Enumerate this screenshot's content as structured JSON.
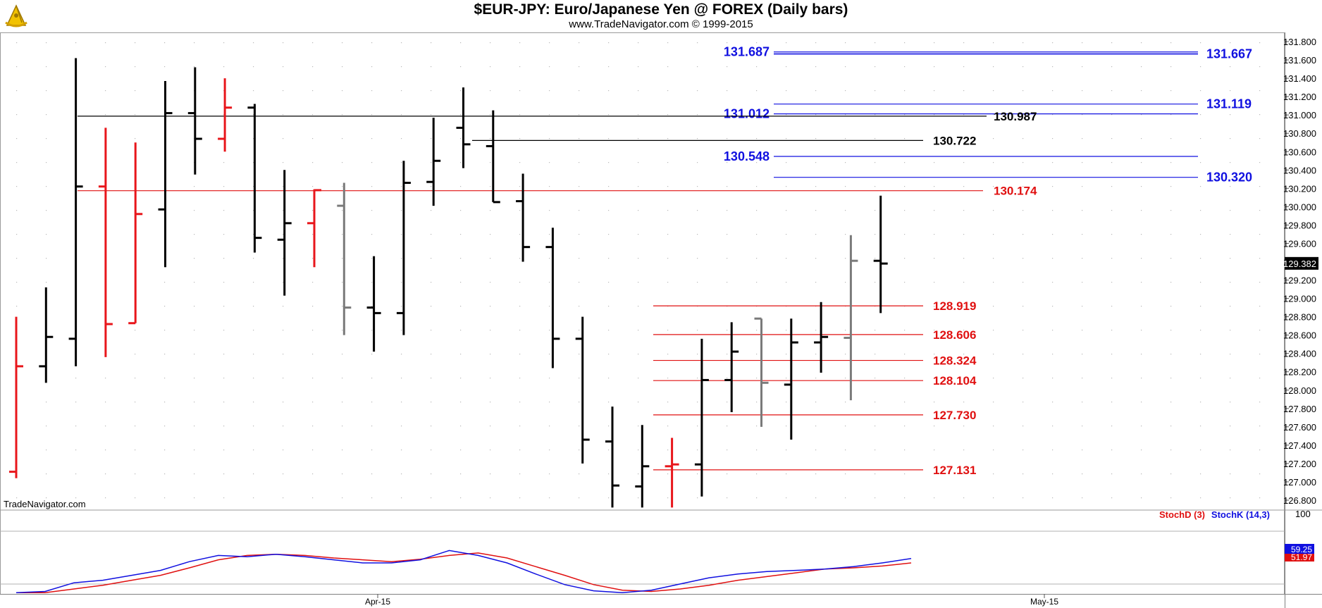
{
  "header": {
    "title": "$EUR-JPY:  Euro/Japanese Yen @ FOREX  (Daily bars)",
    "subtitle": "www.TradeNavigator.com © 1999-2015",
    "logo_icon": "sextant-icon"
  },
  "watermark": "TradeNavigator.com",
  "chart_data": [
    {
      "type": "ohlc",
      "title": "$EUR-JPY:  Euro/Japanese Yen @ FOREX  (Daily bars)",
      "ylim": [
        126.7,
        131.9
      ],
      "y_ticks": [
        "131.800",
        "131.600",
        "131.400",
        "131.200",
        "131.000",
        "130.800",
        "130.600",
        "130.400",
        "130.200",
        "130.000",
        "129.800",
        "129.600",
        "129.400",
        "129.200",
        "129.000",
        "128.800",
        "128.600",
        "128.400",
        "128.200",
        "128.000",
        "127.800",
        "127.600",
        "127.400",
        "127.200",
        "127.000",
        "126.800"
      ],
      "x_ticks": [
        "Apr-15",
        "May-15"
      ],
      "last_price": "129.382",
      "grid": "dotted",
      "bars": [
        {
          "open": 127.11,
          "high": 128.8,
          "low": 127.04,
          "close": 128.26,
          "color": "red"
        },
        {
          "open": 128.26,
          "high": 129.12,
          "low": 128.08,
          "close": 128.58,
          "color": "black"
        },
        {
          "open": 128.56,
          "high": 131.62,
          "low": 128.26,
          "close": 130.22,
          "color": "black"
        },
        {
          "open": 130.22,
          "high": 130.86,
          "low": 128.36,
          "close": 128.72,
          "color": "red"
        },
        {
          "open": 128.73,
          "high": 130.7,
          "low": 128.73,
          "close": 129.92,
          "color": "red"
        },
        {
          "open": 129.97,
          "high": 131.37,
          "low": 129.34,
          "close": 131.02,
          "color": "black"
        },
        {
          "open": 131.02,
          "high": 131.52,
          "low": 130.35,
          "close": 130.74,
          "color": "black"
        },
        {
          "open": 130.74,
          "high": 131.4,
          "low": 130.6,
          "close": 131.08,
          "color": "red"
        },
        {
          "open": 131.08,
          "high": 131.12,
          "low": 129.5,
          "close": 129.66,
          "color": "black"
        },
        {
          "open": 129.64,
          "high": 130.4,
          "low": 129.03,
          "close": 129.82,
          "color": "black"
        },
        {
          "open": 129.82,
          "high": 130.19,
          "low": 129.34,
          "close": 130.18,
          "color": "red"
        },
        {
          "open": 130.01,
          "high": 130.26,
          "low": 128.6,
          "close": 128.9,
          "color": "gray"
        },
        {
          "open": 128.9,
          "high": 129.46,
          "low": 128.42,
          "close": 128.84,
          "color": "black"
        },
        {
          "open": 128.84,
          "high": 130.5,
          "low": 128.6,
          "close": 130.26,
          "color": "black"
        },
        {
          "open": 130.27,
          "high": 130.97,
          "low": 130.01,
          "close": 130.5,
          "color": "black"
        },
        {
          "open": 130.86,
          "high": 131.3,
          "low": 130.42,
          "close": 130.68,
          "color": "black"
        },
        {
          "open": 130.66,
          "high": 131.05,
          "low": 130.05,
          "close": 130.05,
          "color": "black"
        },
        {
          "open": 130.06,
          "high": 130.36,
          "low": 129.4,
          "close": 129.56,
          "color": "black"
        },
        {
          "open": 129.56,
          "high": 129.77,
          "low": 128.24,
          "close": 128.56,
          "color": "black"
        },
        {
          "open": 128.56,
          "high": 128.8,
          "low": 127.2,
          "close": 127.46,
          "color": "black"
        },
        {
          "open": 127.44,
          "high": 127.82,
          "low": 126.72,
          "close": 126.96,
          "color": "black"
        },
        {
          "open": 126.95,
          "high": 127.62,
          "low": 126.72,
          "close": 127.17,
          "color": "black"
        },
        {
          "open": 127.17,
          "high": 127.48,
          "low": 126.72,
          "close": 127.19,
          "color": "red"
        },
        {
          "open": 127.19,
          "high": 128.56,
          "low": 126.84,
          "close": 128.11,
          "color": "black"
        },
        {
          "open": 128.11,
          "high": 128.74,
          "low": 127.76,
          "close": 128.42,
          "color": "black"
        },
        {
          "open": 128.78,
          "high": 128.78,
          "low": 127.6,
          "close": 128.08,
          "color": "gray"
        },
        {
          "open": 128.06,
          "high": 128.78,
          "low": 127.46,
          "close": 128.52,
          "color": "black"
        },
        {
          "open": 128.52,
          "high": 128.96,
          "low": 128.19,
          "close": 128.58,
          "color": "black"
        },
        {
          "open": 128.57,
          "high": 129.69,
          "low": 127.89,
          "close": 129.41,
          "color": "gray"
        },
        {
          "open": 129.41,
          "high": 130.12,
          "low": 128.84,
          "close": 129.38,
          "color": "black"
        }
      ],
      "levels": [
        {
          "value": 131.687,
          "label": "131.687",
          "color": "#1010e0",
          "side": "left",
          "group": "A"
        },
        {
          "value": 131.667,
          "label": "131.667",
          "color": "#1010e0",
          "side": "right",
          "group": "A"
        },
        {
          "value": 131.119,
          "label": "131.119",
          "color": "#1010e0",
          "side": "right",
          "group": "A"
        },
        {
          "value": 131.012,
          "label": "131.012",
          "color": "#1010e0",
          "side": "left",
          "group": "A"
        },
        {
          "value": 130.548,
          "label": "130.548",
          "color": "#1010e0",
          "side": "left",
          "group": "A"
        },
        {
          "value": 130.32,
          "label": "130.320",
          "color": "#1010e0",
          "side": "right",
          "group": "A"
        },
        {
          "value": 130.987,
          "label": "130.987",
          "color": "#000000",
          "side": "mid",
          "group": "B"
        },
        {
          "value": 130.722,
          "label": "130.722",
          "color": "#000000",
          "side": "mid",
          "group": "C"
        },
        {
          "value": 130.174,
          "label": "130.174",
          "color": "#e01010",
          "side": "mid",
          "group": "D"
        },
        {
          "value": 128.919,
          "label": "128.919",
          "color": "#e01010",
          "side": "mid",
          "group": "E"
        },
        {
          "value": 128.606,
          "label": "128.606",
          "color": "#e01010",
          "side": "mid",
          "group": "E"
        },
        {
          "value": 128.324,
          "label": "128.324",
          "color": "#e01010",
          "side": "mid",
          "group": "E"
        },
        {
          "value": 128.104,
          "label": "128.104",
          "color": "#e01010",
          "side": "mid",
          "group": "E"
        },
        {
          "value": 127.73,
          "label": "127.730",
          "color": "#e01010",
          "side": "mid",
          "group": "E"
        },
        {
          "value": 127.131,
          "label": "127.131",
          "color": "#e01010",
          "side": "mid",
          "group": "E"
        }
      ]
    },
    {
      "type": "line",
      "title": "",
      "ylim": [
        0,
        100
      ],
      "y_ticks": [
        "100"
      ],
      "series": [
        {
          "name": "StochD (3)",
          "color": "#e01010",
          "last_label": "51.97",
          "values": [
            2,
            2,
            8,
            14,
            22,
            30,
            42,
            55,
            62,
            64,
            62,
            58,
            55,
            52,
            56,
            62,
            66,
            58,
            44,
            30,
            15,
            6,
            4,
            8,
            14,
            22,
            28,
            34,
            40,
            42,
            45,
            50
          ]
        },
        {
          "name": "StochK (14,3)",
          "color": "#1010e0",
          "last_label": "59.25",
          "values": [
            2,
            4,
            18,
            22,
            30,
            38,
            52,
            62,
            60,
            64,
            60,
            55,
            50,
            50,
            55,
            70,
            62,
            50,
            32,
            15,
            5,
            2,
            6,
            16,
            26,
            32,
            36,
            38,
            40,
            44,
            50,
            57
          ]
        }
      ]
    }
  ]
}
